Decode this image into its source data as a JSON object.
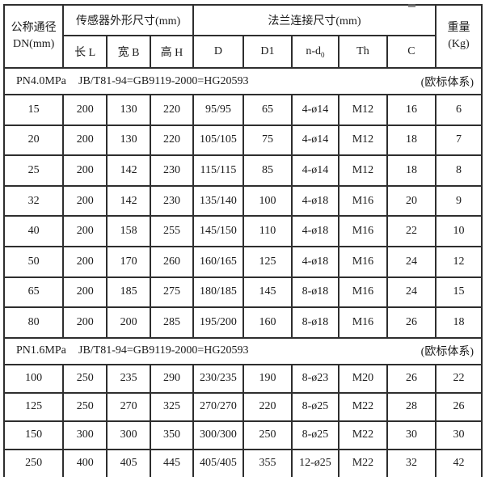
{
  "header": {
    "dn": {
      "line1": "公称通径",
      "line2": "DN(mm)"
    },
    "sensor_group": "传感器外形尺寸(mm)",
    "sensor_cols": {
      "length": "长 L",
      "width": "宽 B",
      "height": "高 H"
    },
    "flange_group": "法兰连接尺寸(mm)",
    "col_d": "D",
    "col_d1": "D1",
    "col_nd0": {
      "main": "n-d",
      "sub": "0"
    },
    "col_th": "Th",
    "col_c": "C",
    "weight": {
      "line1": "重量",
      "line2": "(Kg)"
    }
  },
  "sections": [
    {
      "pressure": "PN4.0MPa",
      "standard": "JB/T81-94=GB9119-2000=HG20593",
      "note": "(欧标体系)",
      "rows": [
        [
          "15",
          "200",
          "130",
          "220",
          "95/95",
          "65",
          "4-ø14",
          "M12",
          "16",
          "6"
        ],
        [
          "20",
          "200",
          "130",
          "220",
          "105/105",
          "75",
          "4-ø14",
          "M12",
          "18",
          "7"
        ],
        [
          "25",
          "200",
          "142",
          "230",
          "115/115",
          "85",
          "4-ø14",
          "M12",
          "18",
          "8"
        ],
        [
          "32",
          "200",
          "142",
          "230",
          "135/140",
          "100",
          "4-ø18",
          "M16",
          "20",
          "9"
        ],
        [
          "40",
          "200",
          "158",
          "255",
          "145/150",
          "110",
          "4-ø18",
          "M16",
          "22",
          "10"
        ],
        [
          "50",
          "200",
          "170",
          "260",
          "160/165",
          "125",
          "4-ø18",
          "M16",
          "24",
          "12"
        ],
        [
          "65",
          "200",
          "185",
          "275",
          "180/185",
          "145",
          "8-ø18",
          "M16",
          "24",
          "15"
        ],
        [
          "80",
          "200",
          "200",
          "285",
          "195/200",
          "160",
          "8-ø18",
          "M16",
          "26",
          "18"
        ]
      ]
    },
    {
      "pressure": "PN1.6MPa",
      "standard": "JB/T81-94=GB9119-2000=HG20593",
      "note": "(欧标体系)",
      "rows": [
        [
          "100",
          "250",
          "235",
          "290",
          "230/235",
          "190",
          "8-ø23",
          "M20",
          "26",
          "22"
        ],
        [
          "125",
          "250",
          "270",
          "325",
          "270/270",
          "220",
          "8-ø25",
          "M22",
          "28",
          "26"
        ],
        [
          "150",
          "300",
          "300",
          "350",
          "300/300",
          "250",
          "8-ø25",
          "M22",
          "30",
          "30"
        ],
        [
          "250",
          "400",
          "405",
          "445",
          "405/405",
          "355",
          "12-ø25",
          "M22",
          "32",
          "42"
        ]
      ]
    }
  ],
  "colors": {
    "border": "#2e2e2e",
    "text": "#1b1b1b",
    "background": "#ffffff"
  }
}
